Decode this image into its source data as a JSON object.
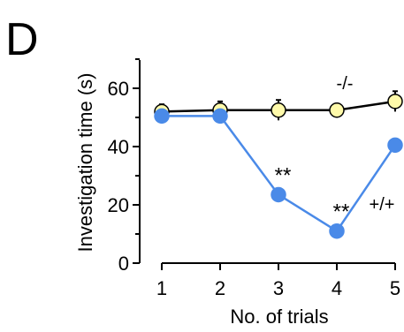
{
  "panel_label": "D",
  "chart_data": {
    "type": "line",
    "xlabel": "No. of trials",
    "ylabel": "Investigation time (s)",
    "xlim": [
      1,
      5
    ],
    "ylim": [
      0,
      70
    ],
    "x": [
      1,
      2,
      3,
      4,
      5
    ],
    "x_tick_labels": [
      "1",
      "2",
      "3",
      "4",
      "5"
    ],
    "y_ticks": [
      0,
      20,
      40,
      60
    ],
    "y_tick_labels": [
      "0",
      "20",
      "40",
      "60"
    ],
    "series": [
      {
        "name": "-/-",
        "values": [
          52,
          52.5,
          52.5,
          52.5,
          55.5
        ],
        "errors": [
          2.5,
          3,
          3.5,
          1,
          3.5
        ],
        "line_color": "#000000",
        "marker_fill": "#fffaaa",
        "marker_stroke": "#000000"
      },
      {
        "name": "+/+",
        "values": [
          50.5,
          50.5,
          23.5,
          11,
          40.5
        ],
        "errors": [
          1,
          1,
          1,
          1,
          1
        ],
        "line_color": "#4a8ae8",
        "marker_fill": "#4a8ae8",
        "marker_stroke": "#4a8ae8"
      }
    ],
    "annotations": [
      {
        "text": "**",
        "x": 3,
        "y": 23.5
      },
      {
        "text": "**",
        "x": 4,
        "y": 11
      }
    ],
    "grid": false
  }
}
